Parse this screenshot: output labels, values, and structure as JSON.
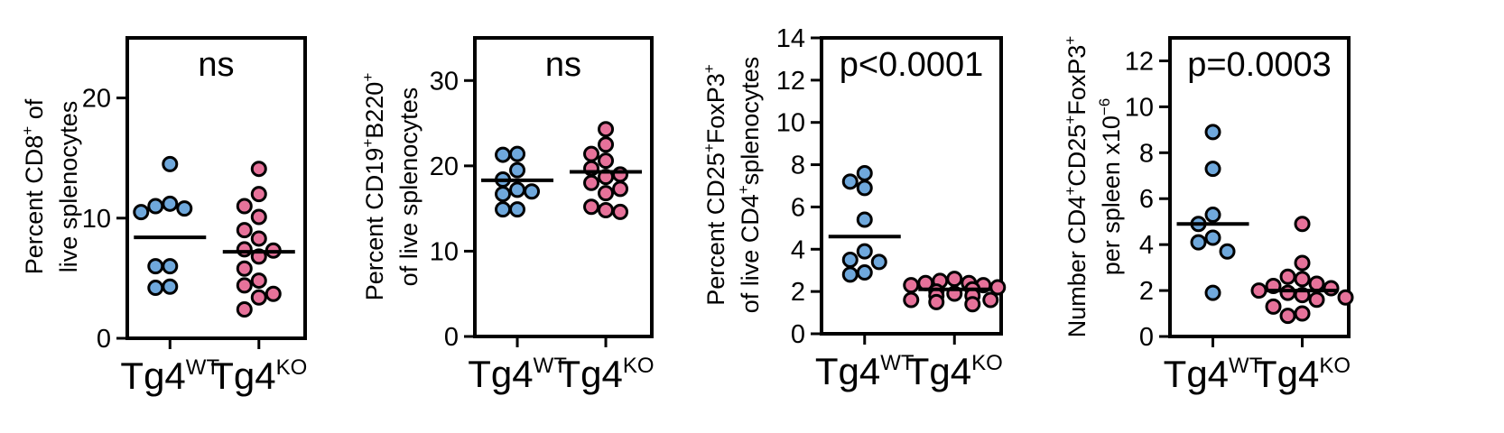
{
  "colors": {
    "wt": "#6fa8dc",
    "ko": "#e6729a",
    "stroke": "#000000"
  },
  "chart_data": [
    {
      "type": "scatter",
      "ylabel": [
        "Percent CD8",
        "+",
        " of",
        "live splenocytes"
      ],
      "annotation": "ns",
      "ylim": [
        0,
        25
      ],
      "yticks": [
        0,
        10,
        20
      ],
      "groups": [
        {
          "base": "Tg4",
          "sup": "WT",
          "color": "#6fa8dc",
          "mean": 8.4,
          "points": [
            14.5,
            11.2,
            11.0,
            10.8,
            10.5,
            6.0,
            6.0,
            4.3,
            4.2
          ]
        },
        {
          "base": "Tg4",
          "sup": "KO",
          "color": "#e6729a",
          "mean": 7.2,
          "points": [
            14.1,
            12.0,
            11.0,
            10.1,
            9.0,
            8.3,
            7.4,
            7.3,
            6.8,
            5.8,
            4.8,
            4.4,
            3.7,
            3.4,
            2.4
          ]
        }
      ]
    },
    {
      "type": "scatter",
      "ylabel": [
        "Percent CD19",
        "+",
        "B220",
        "+",
        "of live splenocytes"
      ],
      "annotation": "ns",
      "ylim": [
        0,
        35
      ],
      "yticks": [
        0,
        10,
        20,
        30
      ],
      "groups": [
        {
          "base": "Tg4",
          "sup": "WT",
          "color": "#6fa8dc",
          "mean": 18.3,
          "points": [
            21.4,
            21.3,
            19.5,
            18.4,
            17.2,
            17.0,
            16.7,
            14.9,
            14.9
          ]
        },
        {
          "base": "Tg4",
          "sup": "KO",
          "color": "#e6729a",
          "mean": 19.3,
          "points": [
            24.3,
            22.5,
            21.4,
            20.6,
            19.7,
            19.0,
            18.7,
            18.0,
            17.3,
            16.8,
            15.2,
            14.8,
            14.6
          ]
        }
      ]
    },
    {
      "type": "scatter",
      "ylabel": [
        "Percent CD25",
        "+",
        "FoxP3",
        "+",
        "of live CD4",
        "+",
        "splenocytes"
      ],
      "annotation": "p<0.0001",
      "ylim": [
        0,
        14
      ],
      "yticks": [
        0,
        2,
        4,
        6,
        8,
        10,
        12,
        14
      ],
      "groups": [
        {
          "base": "Tg4",
          "sup": "WT",
          "color": "#6fa8dc",
          "mean": 4.6,
          "points": [
            7.6,
            7.2,
            6.9,
            5.4,
            3.9,
            3.5,
            3.4,
            2.9,
            2.8
          ]
        },
        {
          "base": "Tg4",
          "sup": "KO",
          "color": "#e6729a",
          "mean": 2.1,
          "points": [
            2.6,
            2.5,
            2.4,
            2.4,
            2.3,
            2.3,
            2.2,
            2.1,
            2.0,
            1.9,
            1.8,
            1.8,
            1.6,
            1.6,
            1.5,
            1.4
          ]
        }
      ]
    },
    {
      "type": "scatter",
      "ylabel": [
        "Number CD4",
        "+",
        "CD25",
        "+",
        "FoxP3",
        "+",
        "per spleen x10",
        "−6"
      ],
      "annotation": "p=0.0003",
      "ylim": [
        0,
        13
      ],
      "yticks": [
        0,
        2,
        4,
        6,
        8,
        10,
        12
      ],
      "groups": [
        {
          "base": "Tg4",
          "sup": "WT",
          "color": "#6fa8dc",
          "mean": 4.9,
          "points": [
            8.9,
            7.3,
            5.3,
            4.9,
            4.3,
            4.1,
            3.7,
            1.9
          ]
        },
        {
          "base": "Tg4",
          "sup": "KO",
          "color": "#e6729a",
          "mean": 2.0,
          "points": [
            4.9,
            3.2,
            2.6,
            2.5,
            2.3,
            2.2,
            2.1,
            2.0,
            1.9,
            1.8,
            1.7,
            1.6,
            1.3,
            1.0,
            0.9
          ]
        }
      ]
    }
  ]
}
